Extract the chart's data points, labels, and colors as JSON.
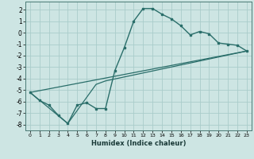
{
  "xlabel": "Humidex (Indice chaleur)",
  "xlim": [
    -0.5,
    23.5
  ],
  "ylim": [
    -8.5,
    2.7
  ],
  "xticks": [
    0,
    1,
    2,
    3,
    4,
    5,
    6,
    7,
    8,
    9,
    10,
    11,
    12,
    13,
    14,
    15,
    16,
    17,
    18,
    19,
    20,
    21,
    22,
    23
  ],
  "yticks": [
    -8,
    -7,
    -6,
    -5,
    -4,
    -3,
    -2,
    -1,
    0,
    1,
    2
  ],
  "bg_color": "#cde5e3",
  "grid_color": "#aaccca",
  "line_color": "#2a6e6a",
  "line1_x": [
    0,
    1,
    2,
    3,
    4,
    5,
    6,
    7,
    8,
    9,
    10,
    11,
    12,
    13,
    14,
    15,
    16,
    17,
    18,
    19,
    20,
    21,
    22,
    23
  ],
  "line1_y": [
    -5.2,
    -5.9,
    -6.3,
    -7.2,
    -7.9,
    -6.3,
    -6.1,
    -6.6,
    -6.6,
    -3.3,
    -1.3,
    1.0,
    2.1,
    2.1,
    1.6,
    1.2,
    0.6,
    -0.2,
    0.1,
    -0.1,
    -0.9,
    -1.0,
    -1.1,
    -1.6
  ],
  "line2_x": [
    0,
    4,
    7,
    8,
    23
  ],
  "line2_y": [
    -5.2,
    -7.9,
    -4.5,
    -4.2,
    -1.6
  ],
  "line3_x": [
    0,
    23
  ],
  "line3_y": [
    -5.2,
    -1.6
  ]
}
